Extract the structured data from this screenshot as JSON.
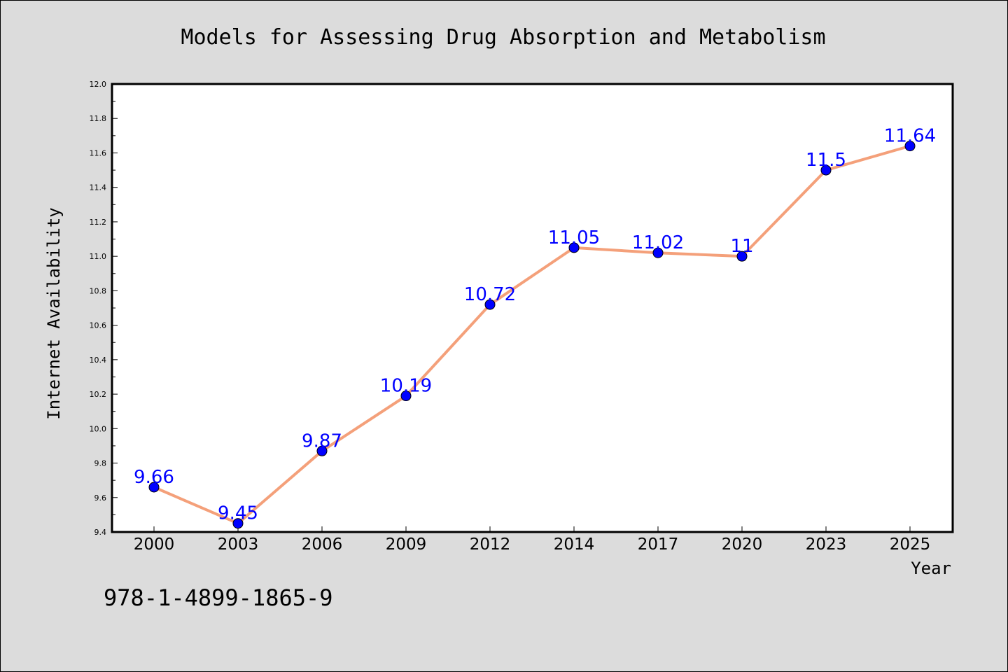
{
  "chart_data": {
    "type": "line",
    "title": "Models for Assessing Drug Absorption and Metabolism",
    "xlabel": "Year",
    "ylabel": "Internet Availability",
    "categories": [
      "2000",
      "2003",
      "2006",
      "2009",
      "2012",
      "2014",
      "2017",
      "2020",
      "2023",
      "2025"
    ],
    "series": [
      {
        "values": [
          9.66,
          9.45,
          9.87,
          10.19,
          10.72,
          11.05,
          11.02,
          11,
          11.5,
          11.64
        ],
        "data_labels": [
          "9.66",
          "9.45",
          "9.87",
          "10.19",
          "10.72",
          "11.05",
          "11.02",
          "11",
          "11.5",
          "11.64"
        ],
        "line_color": "#f4a07a",
        "marker_color": "#0000ff"
      }
    ],
    "ylim": [
      9.4,
      12.0
    ],
    "yticks": [
      "9.4",
      "9.6",
      "9.8",
      "10.0",
      "10.2",
      "10.4",
      "10.6",
      "10.8",
      "11.0",
      "11.2",
      "11.4",
      "11.6",
      "11.8",
      "12.0"
    ],
    "grid": false,
    "legend": "none"
  },
  "annotation": "978-1-4899-1865-9",
  "colors": {
    "background": "#dcdcdc",
    "plot_background": "#ffffff",
    "line": "#f4a07a",
    "marker": "#0000ff",
    "data_label": "#0000ff"
  }
}
